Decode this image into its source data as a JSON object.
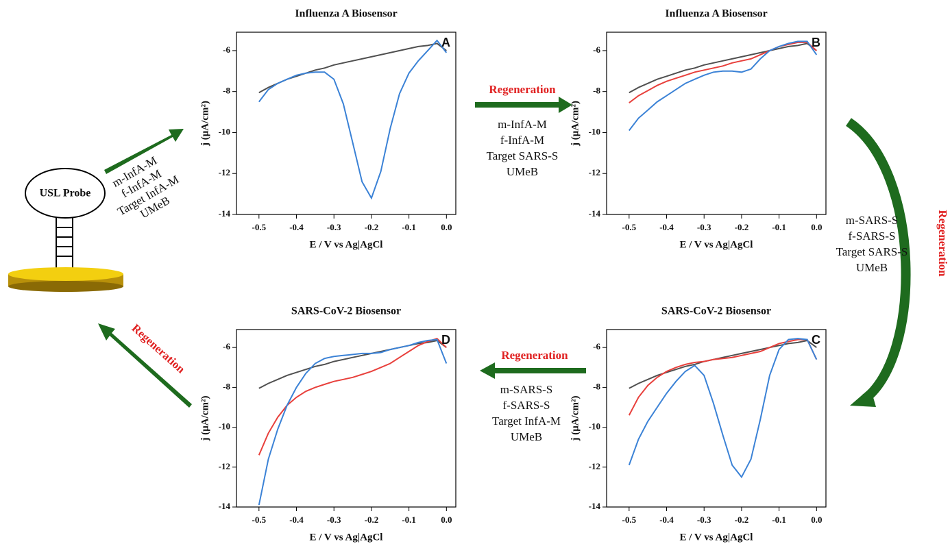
{
  "chart_data": [
    {
      "type": "line",
      "title": "Influenza A Biosensor",
      "panel": "A",
      "xlabel": "E / V vs Ag|AgCl",
      "ylabel": "j (μA/cm²)",
      "xlim": [
        -0.56,
        0.025
      ],
      "ylim": [
        -14,
        -5.1
      ],
      "xticks": [
        -0.5,
        -0.4,
        -0.3,
        -0.2,
        -0.1,
        {
          "value": 0,
          "label": "0.0"
        }
      ],
      "yticks": [
        -14,
        -12,
        -10,
        -8,
        -6
      ],
      "x": [
        -0.5,
        -0.475,
        -0.45,
        -0.425,
        -0.4,
        -0.375,
        -0.35,
        -0.325,
        -0.3,
        -0.275,
        -0.25,
        -0.225,
        -0.2,
        -0.175,
        -0.15,
        -0.125,
        -0.1,
        -0.075,
        -0.05,
        -0.025,
        0
      ],
      "series": [
        {
          "color": "#505050",
          "values": [
            -8.05,
            -7.8,
            -7.6,
            -7.4,
            -7.25,
            -7.1,
            -6.95,
            -6.85,
            -6.7,
            -6.6,
            -6.5,
            -6.4,
            -6.3,
            -6.2,
            -6.1,
            -6.0,
            -5.9,
            -5.8,
            -5.75,
            -5.65,
            -6.0
          ]
        },
        {
          "color": "#3b82d6",
          "values": [
            -8.5,
            -7.9,
            -7.6,
            -7.4,
            -7.2,
            -7.1,
            -7.05,
            -7.05,
            -7.4,
            -8.6,
            -10.5,
            -12.4,
            -13.2,
            -11.9,
            -9.8,
            -8.1,
            -7.1,
            -6.5,
            -6.0,
            -5.5,
            -6.1
          ]
        }
      ]
    },
    {
      "type": "line",
      "title": "Influenza A Biosensor",
      "panel": "B",
      "xlabel": "E / V vs Ag|AgCl",
      "ylabel": "j (μA/cm²)",
      "xlim": [
        -0.56,
        0.025
      ],
      "ylim": [
        -14,
        -5.1
      ],
      "xticks": [
        -0.5,
        -0.4,
        -0.3,
        -0.2,
        -0.1,
        {
          "value": 0,
          "label": "0.0"
        }
      ],
      "yticks": [
        -14,
        -12,
        -10,
        -8,
        -6
      ],
      "x": [
        -0.5,
        -0.475,
        -0.45,
        -0.425,
        -0.4,
        -0.375,
        -0.35,
        -0.325,
        -0.3,
        -0.275,
        -0.25,
        -0.225,
        -0.2,
        -0.175,
        -0.15,
        -0.125,
        -0.1,
        -0.075,
        -0.05,
        -0.025,
        0
      ],
      "series": [
        {
          "color": "#505050",
          "values": [
            -8.05,
            -7.8,
            -7.6,
            -7.4,
            -7.25,
            -7.1,
            -6.95,
            -6.85,
            -6.7,
            -6.6,
            -6.5,
            -6.4,
            -6.3,
            -6.2,
            -6.1,
            -6.0,
            -5.9,
            -5.8,
            -5.75,
            -5.65,
            -6.0
          ]
        },
        {
          "color": "#e8403c",
          "values": [
            -8.55,
            -8.2,
            -7.95,
            -7.7,
            -7.5,
            -7.35,
            -7.2,
            -7.05,
            -6.95,
            -6.85,
            -6.75,
            -6.6,
            -6.5,
            -6.4,
            -6.2,
            -6.0,
            -5.8,
            -5.7,
            -5.6,
            -5.6,
            -6.0
          ]
        },
        {
          "color": "#3b82d6",
          "values": [
            -9.9,
            -9.3,
            -8.9,
            -8.5,
            -8.2,
            -7.9,
            -7.6,
            -7.4,
            -7.2,
            -7.05,
            -7.0,
            -7.0,
            -7.05,
            -6.9,
            -6.4,
            -6.0,
            -5.8,
            -5.65,
            -5.55,
            -5.55,
            -6.2
          ]
        }
      ]
    },
    {
      "type": "line",
      "title": "SARS-CoV-2 Biosensor",
      "panel": "C",
      "xlabel": "E / V vs Ag|AgCl",
      "ylabel": "j (μA/cm²)",
      "xlim": [
        -0.56,
        0.025
      ],
      "ylim": [
        -14,
        -5.1
      ],
      "xticks": [
        -0.5,
        -0.4,
        -0.3,
        -0.2,
        -0.1,
        {
          "value": 0,
          "label": "0.0"
        }
      ],
      "yticks": [
        -14,
        -12,
        -10,
        -8,
        -6
      ],
      "x": [
        -0.5,
        -0.475,
        -0.45,
        -0.425,
        -0.4,
        -0.375,
        -0.35,
        -0.325,
        -0.3,
        -0.275,
        -0.25,
        -0.225,
        -0.2,
        -0.175,
        -0.15,
        -0.125,
        -0.1,
        -0.075,
        -0.05,
        -0.025,
        0
      ],
      "series": [
        {
          "color": "#505050",
          "values": [
            -8.05,
            -7.8,
            -7.6,
            -7.4,
            -7.25,
            -7.1,
            -6.95,
            -6.85,
            -6.7,
            -6.6,
            -6.5,
            -6.4,
            -6.3,
            -6.2,
            -6.1,
            -6.0,
            -5.9,
            -5.8,
            -5.75,
            -5.65,
            -6.0
          ]
        },
        {
          "color": "#e8403c",
          "values": [
            -9.4,
            -8.5,
            -7.9,
            -7.5,
            -7.2,
            -7.0,
            -6.85,
            -6.75,
            -6.7,
            -6.6,
            -6.55,
            -6.5,
            -6.4,
            -6.3,
            -6.2,
            -6.0,
            -5.8,
            -5.7,
            -5.6,
            -5.6,
            -6.6
          ]
        },
        {
          "color": "#3b82d6",
          "values": [
            -11.9,
            -10.6,
            -9.7,
            -9.0,
            -8.3,
            -7.7,
            -7.2,
            -6.9,
            -7.4,
            -8.8,
            -10.4,
            -11.9,
            -12.5,
            -11.6,
            -9.6,
            -7.4,
            -6.1,
            -5.6,
            -5.55,
            -5.6,
            -6.6
          ]
        }
      ]
    },
    {
      "type": "line",
      "title": "SARS-CoV-2 Biosensor",
      "panel": "D",
      "xlabel": "E / V vs Ag|AgCl",
      "ylabel": "j (μA/cm²)",
      "xlim": [
        -0.56,
        0.025
      ],
      "ylim": [
        -14,
        -5.1
      ],
      "xticks": [
        -0.5,
        -0.4,
        -0.3,
        -0.2,
        -0.1,
        {
          "value": 0,
          "label": "0.0"
        }
      ],
      "yticks": [
        -14,
        -12,
        -10,
        -8,
        -6
      ],
      "x": [
        -0.5,
        -0.475,
        -0.45,
        -0.425,
        -0.4,
        -0.375,
        -0.35,
        -0.325,
        -0.3,
        -0.275,
        -0.25,
        -0.225,
        -0.2,
        -0.175,
        -0.15,
        -0.125,
        -0.1,
        -0.075,
        -0.05,
        -0.025,
        0
      ],
      "series": [
        {
          "color": "#505050",
          "values": [
            -8.05,
            -7.8,
            -7.6,
            -7.4,
            -7.25,
            -7.1,
            -6.95,
            -6.85,
            -6.7,
            -6.6,
            -6.5,
            -6.4,
            -6.3,
            -6.2,
            -6.1,
            -6.0,
            -5.9,
            -5.8,
            -5.75,
            -5.65,
            -6.0
          ]
        },
        {
          "color": "#e8403c",
          "values": [
            -11.4,
            -10.3,
            -9.5,
            -8.9,
            -8.5,
            -8.2,
            -8.0,
            -7.85,
            -7.7,
            -7.6,
            -7.5,
            -7.35,
            -7.2,
            -7.0,
            -6.8,
            -6.5,
            -6.2,
            -5.9,
            -5.7,
            -5.55,
            -6.0
          ]
        },
        {
          "color": "#3b82d6",
          "values": [
            -13.9,
            -11.6,
            -10.1,
            -8.9,
            -8.0,
            -7.3,
            -6.8,
            -6.55,
            -6.45,
            -6.4,
            -6.35,
            -6.3,
            -6.3,
            -6.25,
            -6.1,
            -6.0,
            -5.9,
            -5.75,
            -5.65,
            -5.6,
            -6.8
          ]
        }
      ]
    }
  ],
  "diagram": {
    "probe": "USL Probe",
    "steps": [
      {
        "lines": [
          "m-InfA-M",
          "f-InfA-M",
          "Target InfA-M",
          "UMeB"
        ]
      },
      {
        "label": "Regeneration",
        "lines": [
          "m-InfA-M",
          "f-InfA-M",
          "Target SARS-S",
          "UMeB"
        ]
      },
      {
        "label": "Regeneration",
        "lines": [
          "m-SARS-S",
          "f-SARS-S",
          "Target SARS-S",
          "UMeB"
        ]
      },
      {
        "label": "Regeneration",
        "lines": [
          "m-SARS-S",
          "f-SARS-S",
          "Target InfA-M",
          "UMeB"
        ]
      },
      {
        "label": "Regeneration"
      }
    ]
  }
}
